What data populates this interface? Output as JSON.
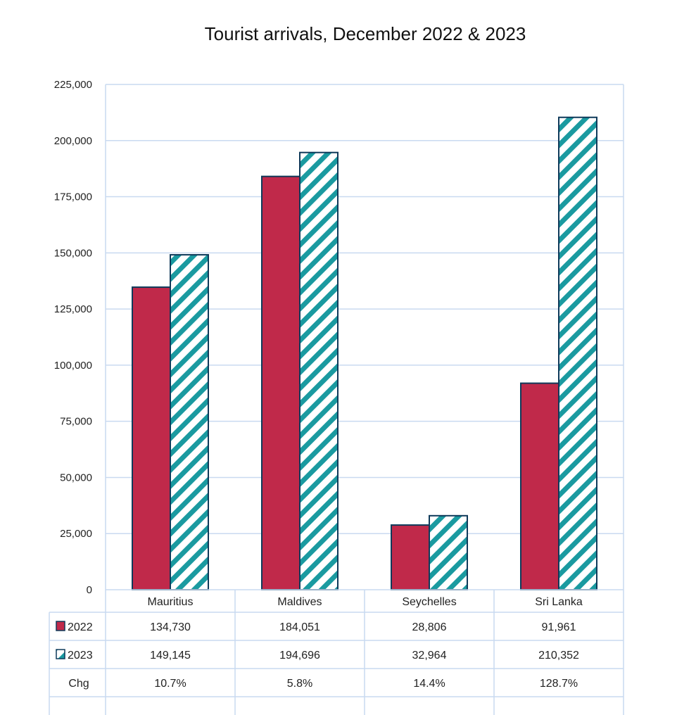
{
  "chart_data": {
    "type": "bar",
    "title": "Tourist arrivals, December 2022 & 2023",
    "xlabel": "",
    "ylabel": "",
    "ylim": [
      0,
      225000
    ],
    "yticks": [
      "0",
      "25,000",
      "50,000",
      "75,000",
      "100,000",
      "125,000",
      "150,000",
      "175,000",
      "200,000",
      "225,000"
    ],
    "ytick_values": [
      0,
      25000,
      50000,
      75000,
      100000,
      125000,
      150000,
      175000,
      200000,
      225000
    ],
    "grid": true,
    "legend": "data-table-left",
    "categories": [
      "Mauritius",
      "Maldives",
      "Seychelles",
      "Sri Lanka"
    ],
    "series": [
      {
        "name": "2022",
        "values": [
          134730,
          184051,
          28806,
          91961
        ],
        "labels": [
          "134,730",
          "184,051",
          "28,806",
          "91,961"
        ],
        "color": "#c0294a",
        "pattern": "solid"
      },
      {
        "name": "2023",
        "values": [
          149145,
          194696,
          32964,
          210352
        ],
        "labels": [
          "149,145",
          "194,696",
          "32,964",
          "210,352"
        ],
        "color": "#1a9aa0",
        "pattern": "diagonal-stripes"
      }
    ],
    "extra_rows": [
      {
        "name": "Chg",
        "values": [
          "10.7%",
          "5.8%",
          "14.4%",
          "128.7%"
        ]
      }
    ],
    "colors": {
      "grid": "#c9daf0",
      "border": "#0f3a5a"
    }
  }
}
